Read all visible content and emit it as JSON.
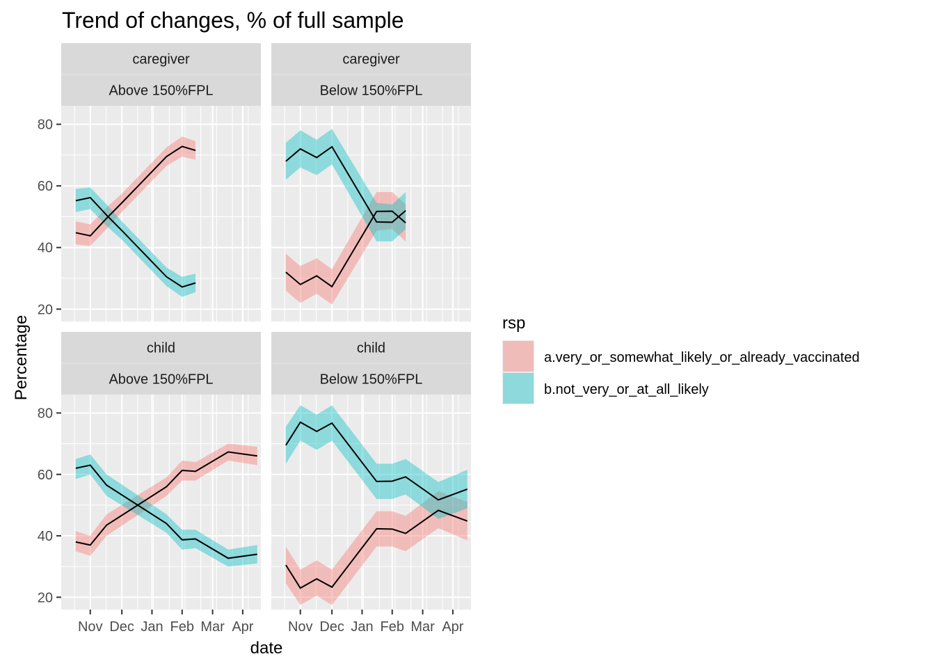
{
  "chart_data": {
    "type": "line",
    "title": "Trend of changes, % of full sample",
    "xlabel": "date",
    "ylabel": "Percentage",
    "x_tick_labels": [
      "Nov",
      "Dec",
      "Jan",
      "Feb",
      "Mar",
      "Apr"
    ],
    "x_ticks": [
      2020.83,
      2020.917,
      2021.0,
      2021.083,
      2021.167,
      2021.25
    ],
    "xlim": [
      2020.75,
      2021.3
    ],
    "y_ticks": [
      20,
      40,
      60,
      80
    ],
    "ylim": [
      16,
      86
    ],
    "grid": true,
    "legend": {
      "title": "rsp",
      "position": "right",
      "entries": [
        {
          "label": "a.very_or_somewhat_likely_or_already_vaccinated",
          "color": "#F8766D"
        },
        {
          "label": "b.not_very_or_at_all_likely",
          "color": "#00BFC4"
        }
      ]
    },
    "facets": [
      {
        "strip_top": "caregiver",
        "strip_bottom": "Above 150%FPL",
        "series": [
          {
            "name": "a.very_or_somewhat_likely_or_already_vaccinated",
            "x": [
              2020.79,
              2020.83,
              2020.875,
              2020.917,
              2021.04,
              2021.083,
              2021.12
            ],
            "y": [
              44.8,
              43.8,
              49.5,
              54.5,
              69.5,
              72.8,
              71.5
            ],
            "lower": [
              41,
              40.5,
              46,
              51.5,
              66.5,
              69.5,
              68.5
            ],
            "upper": [
              48.5,
              47.5,
              53,
              57.5,
              72.5,
              76,
              74.5
            ]
          },
          {
            "name": "b.not_very_or_at_all_likely",
            "x": [
              2020.79,
              2020.83,
              2020.875,
              2020.917,
              2021.04,
              2021.083,
              2021.12
            ],
            "y": [
              55.2,
              56.2,
              50.5,
              45.5,
              30.5,
              27.2,
              28.5
            ],
            "lower": [
              51.5,
              52.5,
              47,
              42.5,
              27.5,
              24,
              25.5
            ],
            "upper": [
              59,
              59.5,
              54,
              48.5,
              33.5,
              30.5,
              31.5
            ]
          }
        ]
      },
      {
        "strip_top": "caregiver",
        "strip_bottom": "Below 150%FPL",
        "series": [
          {
            "name": "a.very_or_somewhat_likely_or_already_vaccinated",
            "x": [
              2020.79,
              2020.83,
              2020.875,
              2020.917,
              2021.04,
              2021.083,
              2021.12
            ],
            "y": [
              32,
              28,
              30.8,
              27.3,
              51.7,
              51.8,
              48
            ],
            "lower": [
              26,
              22,
              25,
              21.5,
              45.5,
              46,
              42
            ],
            "upper": [
              38,
              34,
              36.5,
              33,
              58,
              58,
              54
            ]
          },
          {
            "name": "b.not_very_or_at_all_likely",
            "x": [
              2020.79,
              2020.83,
              2020.875,
              2020.917,
              2021.04,
              2021.083,
              2021.12
            ],
            "y": [
              68,
              72,
              69.2,
              72.7,
              48.3,
              48.2,
              52
            ],
            "lower": [
              62,
              66,
              63.5,
              67,
              42,
              42,
              46
            ],
            "upper": [
              74,
              78,
              75,
              78.5,
              54.5,
              54,
              58
            ]
          }
        ]
      },
      {
        "strip_top": "child",
        "strip_bottom": "Above 150%FPL",
        "series": [
          {
            "name": "a.very_or_somewhat_likely_or_already_vaccinated",
            "x": [
              2020.79,
              2020.83,
              2020.875,
              2021.04,
              2021.083,
              2021.12,
              2021.21,
              2021.29
            ],
            "y": [
              38,
              37,
              43.5,
              56,
              61.3,
              61,
              67.3,
              66
            ],
            "lower": [
              35,
              33.5,
              40,
              53,
              58,
              58,
              64.5,
              63
            ],
            "upper": [
              41.5,
              40,
              47,
              59,
              64.5,
              64,
              70,
              69
            ]
          },
          {
            "name": "b.not_very_or_at_all_likely",
            "x": [
              2020.79,
              2020.83,
              2020.875,
              2021.04,
              2021.083,
              2021.12,
              2021.21,
              2021.29
            ],
            "y": [
              62,
              63,
              56.5,
              44,
              38.7,
              39,
              32.7,
              34
            ],
            "lower": [
              58.5,
              60,
              53,
              41,
              35.5,
              36,
              30,
              31
            ],
            "upper": [
              65,
              66.5,
              60,
              47,
              42,
              42,
              35.5,
              37
            ]
          }
        ]
      },
      {
        "strip_top": "child",
        "strip_bottom": "Below 150%FPL",
        "series": [
          {
            "name": "a.very_or_somewhat_likely_or_already_vaccinated",
            "x": [
              2020.79,
              2020.83,
              2020.875,
              2020.917,
              2021.04,
              2021.083,
              2021.12,
              2021.21,
              2021.29
            ],
            "y": [
              30.5,
              23,
              26,
              23.3,
              42.3,
              42.2,
              40.8,
              48.3,
              44.8
            ],
            "lower": [
              24.5,
              17.5,
              20.5,
              17.5,
              36.5,
              36.5,
              35,
              42.5,
              38.5
            ],
            "upper": [
              36.5,
              29,
              32,
              29,
              48,
              48,
              46.5,
              54.5,
              51
            ]
          },
          {
            "name": "b.not_very_or_at_all_likely",
            "x": [
              2020.79,
              2020.83,
              2020.875,
              2020.917,
              2021.04,
              2021.083,
              2021.12,
              2021.21,
              2021.29
            ],
            "y": [
              69.5,
              77,
              74,
              76.7,
              57.7,
              57.8,
              59.2,
              51.7,
              55.2
            ],
            "lower": [
              63.5,
              71,
              68,
              71,
              52,
              52,
              53.5,
              45.5,
              49
            ],
            "upper": [
              75.5,
              82.5,
              79.5,
              82.5,
              63.5,
              63.5,
              65,
              57.5,
              61.5
            ]
          }
        ]
      }
    ]
  }
}
